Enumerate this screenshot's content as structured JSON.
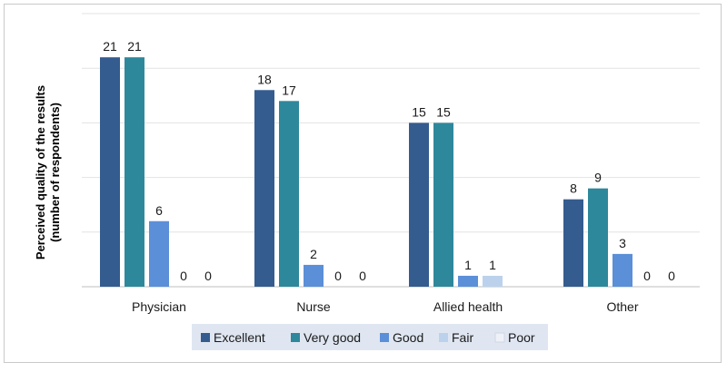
{
  "chart_data": {
    "type": "bar",
    "title": "",
    "xlabel": "",
    "ylabel_lines": [
      "Perceived quality of the results",
      "(number of respondents)"
    ],
    "ylim": [
      0,
      25
    ],
    "grid": true,
    "legend_position": "bottom-center",
    "categories": [
      "Physician",
      "Nurse",
      "Allied health",
      "Other"
    ],
    "series": [
      {
        "name": "Excellent",
        "color": "#345c8f",
        "values": [
          21,
          18,
          15,
          8
        ],
        "labels": [
          "21",
          "18",
          "15",
          "8"
        ]
      },
      {
        "name": "Very good",
        "color": "#2e889b",
        "values": [
          21,
          17,
          15,
          9
        ],
        "labels": [
          "21",
          "17",
          "15",
          "9"
        ]
      },
      {
        "name": "Good",
        "color": "#5b8fd8",
        "values": [
          6,
          2,
          1,
          3
        ],
        "labels": [
          "6",
          "2",
          "1",
          "3"
        ]
      },
      {
        "name": "Fair",
        "color": "#bcd2ec",
        "values": [
          0,
          0,
          1,
          0
        ],
        "labels": [
          "0",
          "0",
          "1",
          "0"
        ]
      },
      {
        "name": "Poor",
        "color": "#eef1f7",
        "values": [
          0,
          0,
          0,
          0
        ],
        "labels": [
          "0",
          "0",
          "",
          "0"
        ]
      }
    ]
  }
}
